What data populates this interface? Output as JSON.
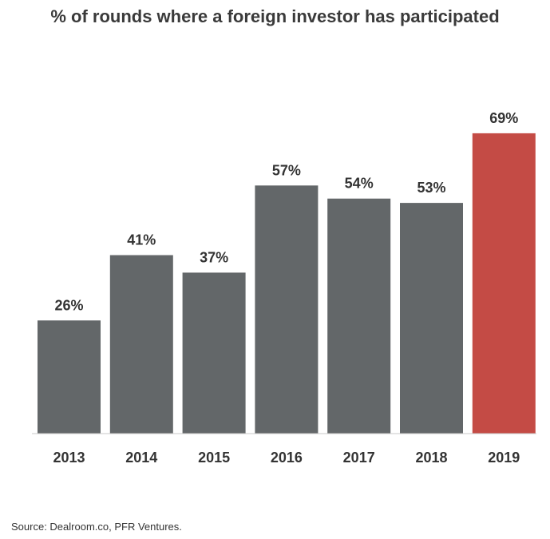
{
  "chart_data": {
    "type": "bar",
    "title": "% of rounds where a foreign investor has participated",
    "categories": [
      "2013",
      "2014",
      "2015",
      "2016",
      "2017",
      "2018",
      "2019"
    ],
    "values": [
      26,
      41,
      37,
      57,
      54,
      53,
      69
    ],
    "value_labels": [
      "26%",
      "41%",
      "37%",
      "57%",
      "54%",
      "53%",
      "69%"
    ],
    "bar_colors": [
      "#636769",
      "#636769",
      "#636769",
      "#636769",
      "#636769",
      "#636769",
      "#c44b45"
    ],
    "xlabel": "",
    "ylabel": "",
    "ylim": [
      0,
      100
    ],
    "grid": false,
    "legend": "none"
  },
  "source": "Source: Dealroom.co, PFR Ventures."
}
